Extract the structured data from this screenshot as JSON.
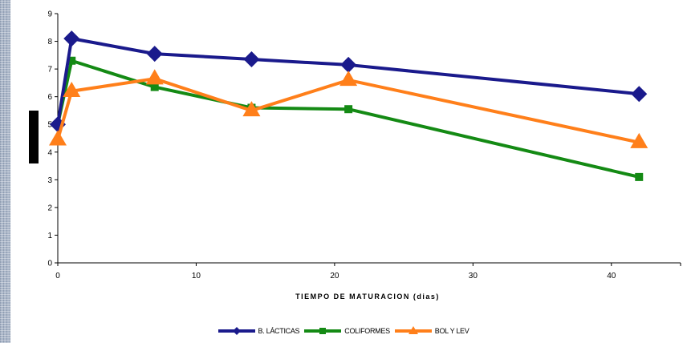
{
  "chart_data": {
    "type": "line",
    "title": "",
    "xlabel": "TIEMPO DE MATURACION (dias)",
    "ylabel": "",
    "xlim": [
      0,
      45
    ],
    "ylim": [
      0,
      9
    ],
    "x_ticks": [
      0,
      10,
      20,
      30,
      40
    ],
    "y_ticks": [
      0,
      1,
      2,
      3,
      4,
      5,
      6,
      7,
      8,
      9
    ],
    "grid": false,
    "legend_position": "bottom",
    "series": [
      {
        "name": "B. LÁCTICAS",
        "color": "#1a1a8c",
        "marker": "diamond",
        "x": [
          0,
          1,
          7,
          14,
          21,
          42
        ],
        "values": [
          5.0,
          8.1,
          7.55,
          7.35,
          7.15,
          6.1
        ]
      },
      {
        "name": "COLIFORMES",
        "color": "#148a14",
        "marker": "square",
        "x": [
          0,
          1,
          7,
          14,
          21,
          42
        ],
        "values": [
          5.0,
          7.3,
          6.35,
          5.6,
          5.55,
          3.1
        ]
      },
      {
        "name": "BOL Y LEV",
        "color": "#ff7f1a",
        "marker": "triangle",
        "x": [
          0,
          1,
          7,
          14,
          21,
          42
        ],
        "values": [
          4.45,
          6.2,
          6.65,
          5.5,
          6.6,
          4.35
        ]
      }
    ]
  }
}
